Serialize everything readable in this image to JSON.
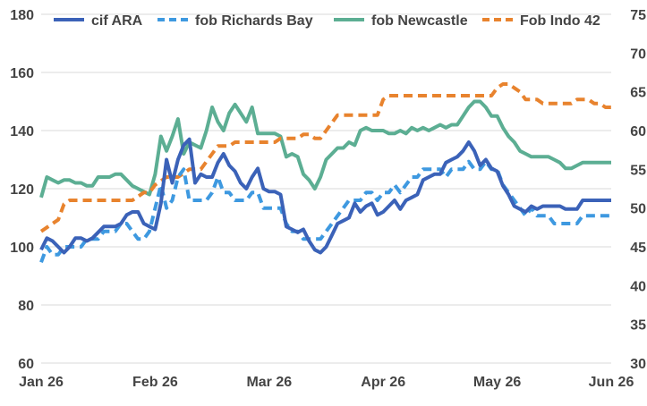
{
  "chart_data": {
    "type": "line",
    "x_ticks": [
      "Jan 26",
      "Feb 26",
      "Mar 26",
      "Apr 26",
      "May 26",
      "Jun 26"
    ],
    "y_left": {
      "range": [
        60,
        180
      ],
      "ticks": [
        60,
        80,
        100,
        120,
        140,
        160,
        180
      ]
    },
    "y_right": {
      "range": [
        30,
        75
      ],
      "ticks": [
        30,
        35,
        40,
        45,
        50,
        55,
        60,
        65,
        70,
        75
      ]
    },
    "grid": true,
    "legend_position": "top",
    "series": [
      {
        "name": "cif ARA",
        "axis": "left",
        "color": "#3b62b8",
        "dash": "solid",
        "x": [
          0,
          0.01,
          0.02,
          0.03,
          0.04,
          0.05,
          0.06,
          0.07,
          0.08,
          0.09,
          0.1,
          0.11,
          0.12,
          0.13,
          0.14,
          0.15,
          0.16,
          0.17,
          0.18,
          0.19,
          0.2,
          0.21,
          0.22,
          0.23,
          0.24,
          0.25,
          0.26,
          0.27,
          0.28,
          0.29,
          0.3,
          0.31,
          0.32,
          0.33,
          0.34,
          0.35,
          0.36,
          0.37,
          0.38,
          0.39,
          0.4,
          0.41,
          0.42,
          0.43,
          0.44,
          0.45,
          0.46,
          0.47,
          0.48,
          0.49,
          0.5,
          0.51,
          0.52,
          0.53,
          0.54,
          0.55,
          0.56,
          0.57,
          0.58,
          0.59,
          0.6,
          0.61,
          0.62,
          0.63,
          0.64,
          0.65,
          0.66,
          0.67,
          0.68,
          0.69,
          0.7,
          0.71,
          0.72,
          0.73,
          0.74,
          0.75,
          0.76,
          0.77,
          0.78,
          0.79,
          0.8,
          0.81,
          0.82,
          0.83,
          0.84,
          0.85,
          0.86,
          0.87,
          0.88,
          0.89,
          0.9,
          0.91,
          0.92,
          0.93,
          0.94,
          0.95,
          0.96,
          0.97,
          0.98,
          0.99,
          1
        ],
        "y": [
          99,
          103,
          102,
          100,
          98,
          100,
          103,
          103,
          102,
          103,
          105,
          107,
          107,
          107,
          108,
          111,
          112,
          112,
          108,
          107,
          106,
          115,
          130,
          122,
          130,
          135,
          137,
          122,
          125,
          124,
          124,
          129,
          132,
          128,
          126,
          122,
          120,
          124,
          127,
          120,
          119,
          119,
          118,
          107,
          106,
          105,
          106,
          102,
          99,
          98,
          100,
          104,
          108,
          109,
          110,
          115,
          112,
          114,
          115,
          111,
          112,
          114,
          116,
          113,
          116,
          117,
          118,
          123,
          124,
          125,
          125,
          129,
          130,
          131,
          133,
          136,
          133,
          128,
          130,
          127,
          126,
          121,
          118,
          114,
          113,
          112,
          114,
          113,
          114,
          114,
          114,
          114,
          113,
          113,
          113,
          116,
          116,
          116,
          116,
          116,
          116
        ]
      },
      {
        "name": "fob Richards Bay",
        "axis": "right",
        "color": "#3e99e0",
        "dash": "dashed",
        "x": [
          0,
          0.01,
          0.02,
          0.03,
          0.04,
          0.05,
          0.06,
          0.07,
          0.08,
          0.09,
          0.1,
          0.11,
          0.12,
          0.13,
          0.14,
          0.15,
          0.16,
          0.17,
          0.18,
          0.19,
          0.2,
          0.21,
          0.22,
          0.23,
          0.24,
          0.25,
          0.26,
          0.27,
          0.28,
          0.29,
          0.3,
          0.31,
          0.32,
          0.33,
          0.34,
          0.35,
          0.36,
          0.37,
          0.38,
          0.39,
          0.4,
          0.41,
          0.42,
          0.43,
          0.44,
          0.45,
          0.46,
          0.47,
          0.48,
          0.49,
          0.5,
          0.51,
          0.52,
          0.53,
          0.54,
          0.55,
          0.56,
          0.57,
          0.58,
          0.59,
          0.6,
          0.61,
          0.62,
          0.63,
          0.64,
          0.65,
          0.66,
          0.67,
          0.68,
          0.69,
          0.7,
          0.71,
          0.72,
          0.73,
          0.74,
          0.75,
          0.76,
          0.77,
          0.78,
          0.79,
          0.8,
          0.81,
          0.82,
          0.83,
          0.84,
          0.85,
          0.86,
          0.87,
          0.88,
          0.89,
          0.9,
          0.91,
          0.92,
          0.93,
          0.94,
          0.95,
          0.96,
          0.97,
          0.98,
          0.99,
          1
        ],
        "y": [
          43,
          45,
          44,
          44,
          45,
          45,
          45,
          45,
          46,
          46,
          46,
          47,
          47,
          47,
          48,
          48,
          47,
          46,
          46,
          47,
          50,
          53,
          50,
          51,
          54,
          55,
          51,
          51,
          51,
          51,
          52,
          54,
          52,
          52,
          51,
          51,
          51,
          52,
          52,
          50,
          50,
          50,
          50,
          48,
          47,
          47,
          46,
          46,
          46,
          46,
          47,
          48,
          49,
          50,
          51,
          51,
          51,
          52,
          52,
          51,
          52,
          52,
          53,
          52,
          53,
          54,
          54,
          55,
          55,
          55,
          55,
          54,
          55,
          55,
          55,
          56,
          55,
          55,
          56,
          55,
          55,
          53,
          52,
          51,
          50,
          49,
          50,
          49,
          49,
          49,
          48,
          48,
          48,
          48,
          48,
          49,
          49,
          49,
          49,
          49,
          49
        ]
      },
      {
        "name": "fob Newcastle",
        "axis": "left",
        "color": "#5cae93",
        "dash": "solid",
        "x": [
          0,
          0.01,
          0.02,
          0.03,
          0.04,
          0.05,
          0.06,
          0.07,
          0.08,
          0.09,
          0.1,
          0.11,
          0.12,
          0.13,
          0.14,
          0.15,
          0.16,
          0.17,
          0.18,
          0.19,
          0.2,
          0.21,
          0.22,
          0.23,
          0.24,
          0.25,
          0.26,
          0.27,
          0.28,
          0.29,
          0.3,
          0.31,
          0.32,
          0.33,
          0.34,
          0.35,
          0.36,
          0.37,
          0.38,
          0.39,
          0.4,
          0.41,
          0.42,
          0.43,
          0.44,
          0.45,
          0.46,
          0.47,
          0.48,
          0.49,
          0.5,
          0.51,
          0.52,
          0.53,
          0.54,
          0.55,
          0.56,
          0.57,
          0.58,
          0.59,
          0.6,
          0.61,
          0.62,
          0.63,
          0.64,
          0.65,
          0.66,
          0.67,
          0.68,
          0.69,
          0.7,
          0.71,
          0.72,
          0.73,
          0.74,
          0.75,
          0.76,
          0.77,
          0.78,
          0.79,
          0.8,
          0.81,
          0.82,
          0.83,
          0.84,
          0.85,
          0.86,
          0.87,
          0.88,
          0.89,
          0.9,
          0.91,
          0.92,
          0.93,
          0.94,
          0.95,
          0.96,
          0.97,
          0.98,
          0.99,
          1
        ],
        "y": [
          117,
          124,
          123,
          122,
          123,
          123,
          122,
          122,
          121,
          121,
          124,
          124,
          124,
          125,
          125,
          123,
          121,
          120,
          119,
          118,
          125,
          138,
          133,
          138,
          144,
          132,
          136,
          135,
          134,
          140,
          148,
          143,
          140,
          146,
          149,
          146,
          143,
          148,
          139,
          139,
          139,
          139,
          138,
          131,
          132,
          131,
          125,
          123,
          120,
          124,
          130,
          132,
          134,
          134,
          136,
          135,
          140,
          141,
          140,
          140,
          140,
          139,
          139,
          140,
          139,
          141,
          140,
          141,
          140,
          141,
          142,
          141,
          142,
          142,
          145,
          148,
          150,
          150,
          148,
          145,
          145,
          141,
          138,
          136,
          133,
          132,
          131,
          131,
          131,
          131,
          130,
          129,
          127,
          127,
          128,
          129,
          129,
          129,
          129,
          129,
          129
        ]
      },
      {
        "name": "Fob Indo 42",
        "axis": "right",
        "color": "#e8832e",
        "dash": "dashed",
        "x": [
          0,
          0.01,
          0.02,
          0.03,
          0.04,
          0.05,
          0.06,
          0.07,
          0.08,
          0.09,
          0.1,
          0.11,
          0.12,
          0.13,
          0.14,
          0.15,
          0.16,
          0.17,
          0.18,
          0.19,
          0.2,
          0.21,
          0.22,
          0.23,
          0.24,
          0.25,
          0.26,
          0.27,
          0.28,
          0.29,
          0.3,
          0.31,
          0.32,
          0.33,
          0.34,
          0.35,
          0.36,
          0.37,
          0.38,
          0.39,
          0.4,
          0.41,
          0.42,
          0.43,
          0.44,
          0.45,
          0.46,
          0.47,
          0.48,
          0.49,
          0.5,
          0.51,
          0.52,
          0.53,
          0.54,
          0.55,
          0.56,
          0.57,
          0.58,
          0.59,
          0.6,
          0.61,
          0.62,
          0.63,
          0.64,
          0.65,
          0.66,
          0.67,
          0.68,
          0.69,
          0.7,
          0.71,
          0.72,
          0.73,
          0.74,
          0.75,
          0.76,
          0.77,
          0.78,
          0.79,
          0.8,
          0.81,
          0.82,
          0.83,
          0.84,
          0.85,
          0.86,
          0.87,
          0.88,
          0.89,
          0.9,
          0.91,
          0.92,
          0.93,
          0.94,
          0.95,
          0.96,
          0.97,
          0.98,
          0.99,
          1
        ],
        "y": [
          47,
          47.5,
          48,
          48.5,
          50.5,
          51,
          51,
          51,
          51,
          51,
          51,
          51,
          51,
          51,
          51,
          51,
          51,
          51.5,
          52,
          52,
          53,
          53.5,
          54,
          54,
          54,
          54.5,
          55,
          55,
          55,
          56,
          57,
          58,
          58,
          58,
          58.5,
          58.5,
          58.5,
          58.5,
          58.5,
          58.5,
          58.5,
          58.5,
          59,
          59,
          59,
          59,
          59.5,
          59.5,
          59,
          59,
          60,
          61,
          62,
          62,
          62,
          62,
          62,
          62,
          62,
          62,
          64,
          64.5,
          64.5,
          64.5,
          64.5,
          64.5,
          64.5,
          64.5,
          64.5,
          64.5,
          64.5,
          64.5,
          64.5,
          64.5,
          64.5,
          64.5,
          64.5,
          64.5,
          64.5,
          64.5,
          65.5,
          66,
          66,
          65.5,
          65,
          64,
          64,
          64,
          63.5,
          63.5,
          63.5,
          63.5,
          63.5,
          63.5,
          64,
          64,
          64,
          63.5,
          63.5,
          63,
          63
        ]
      }
    ]
  }
}
